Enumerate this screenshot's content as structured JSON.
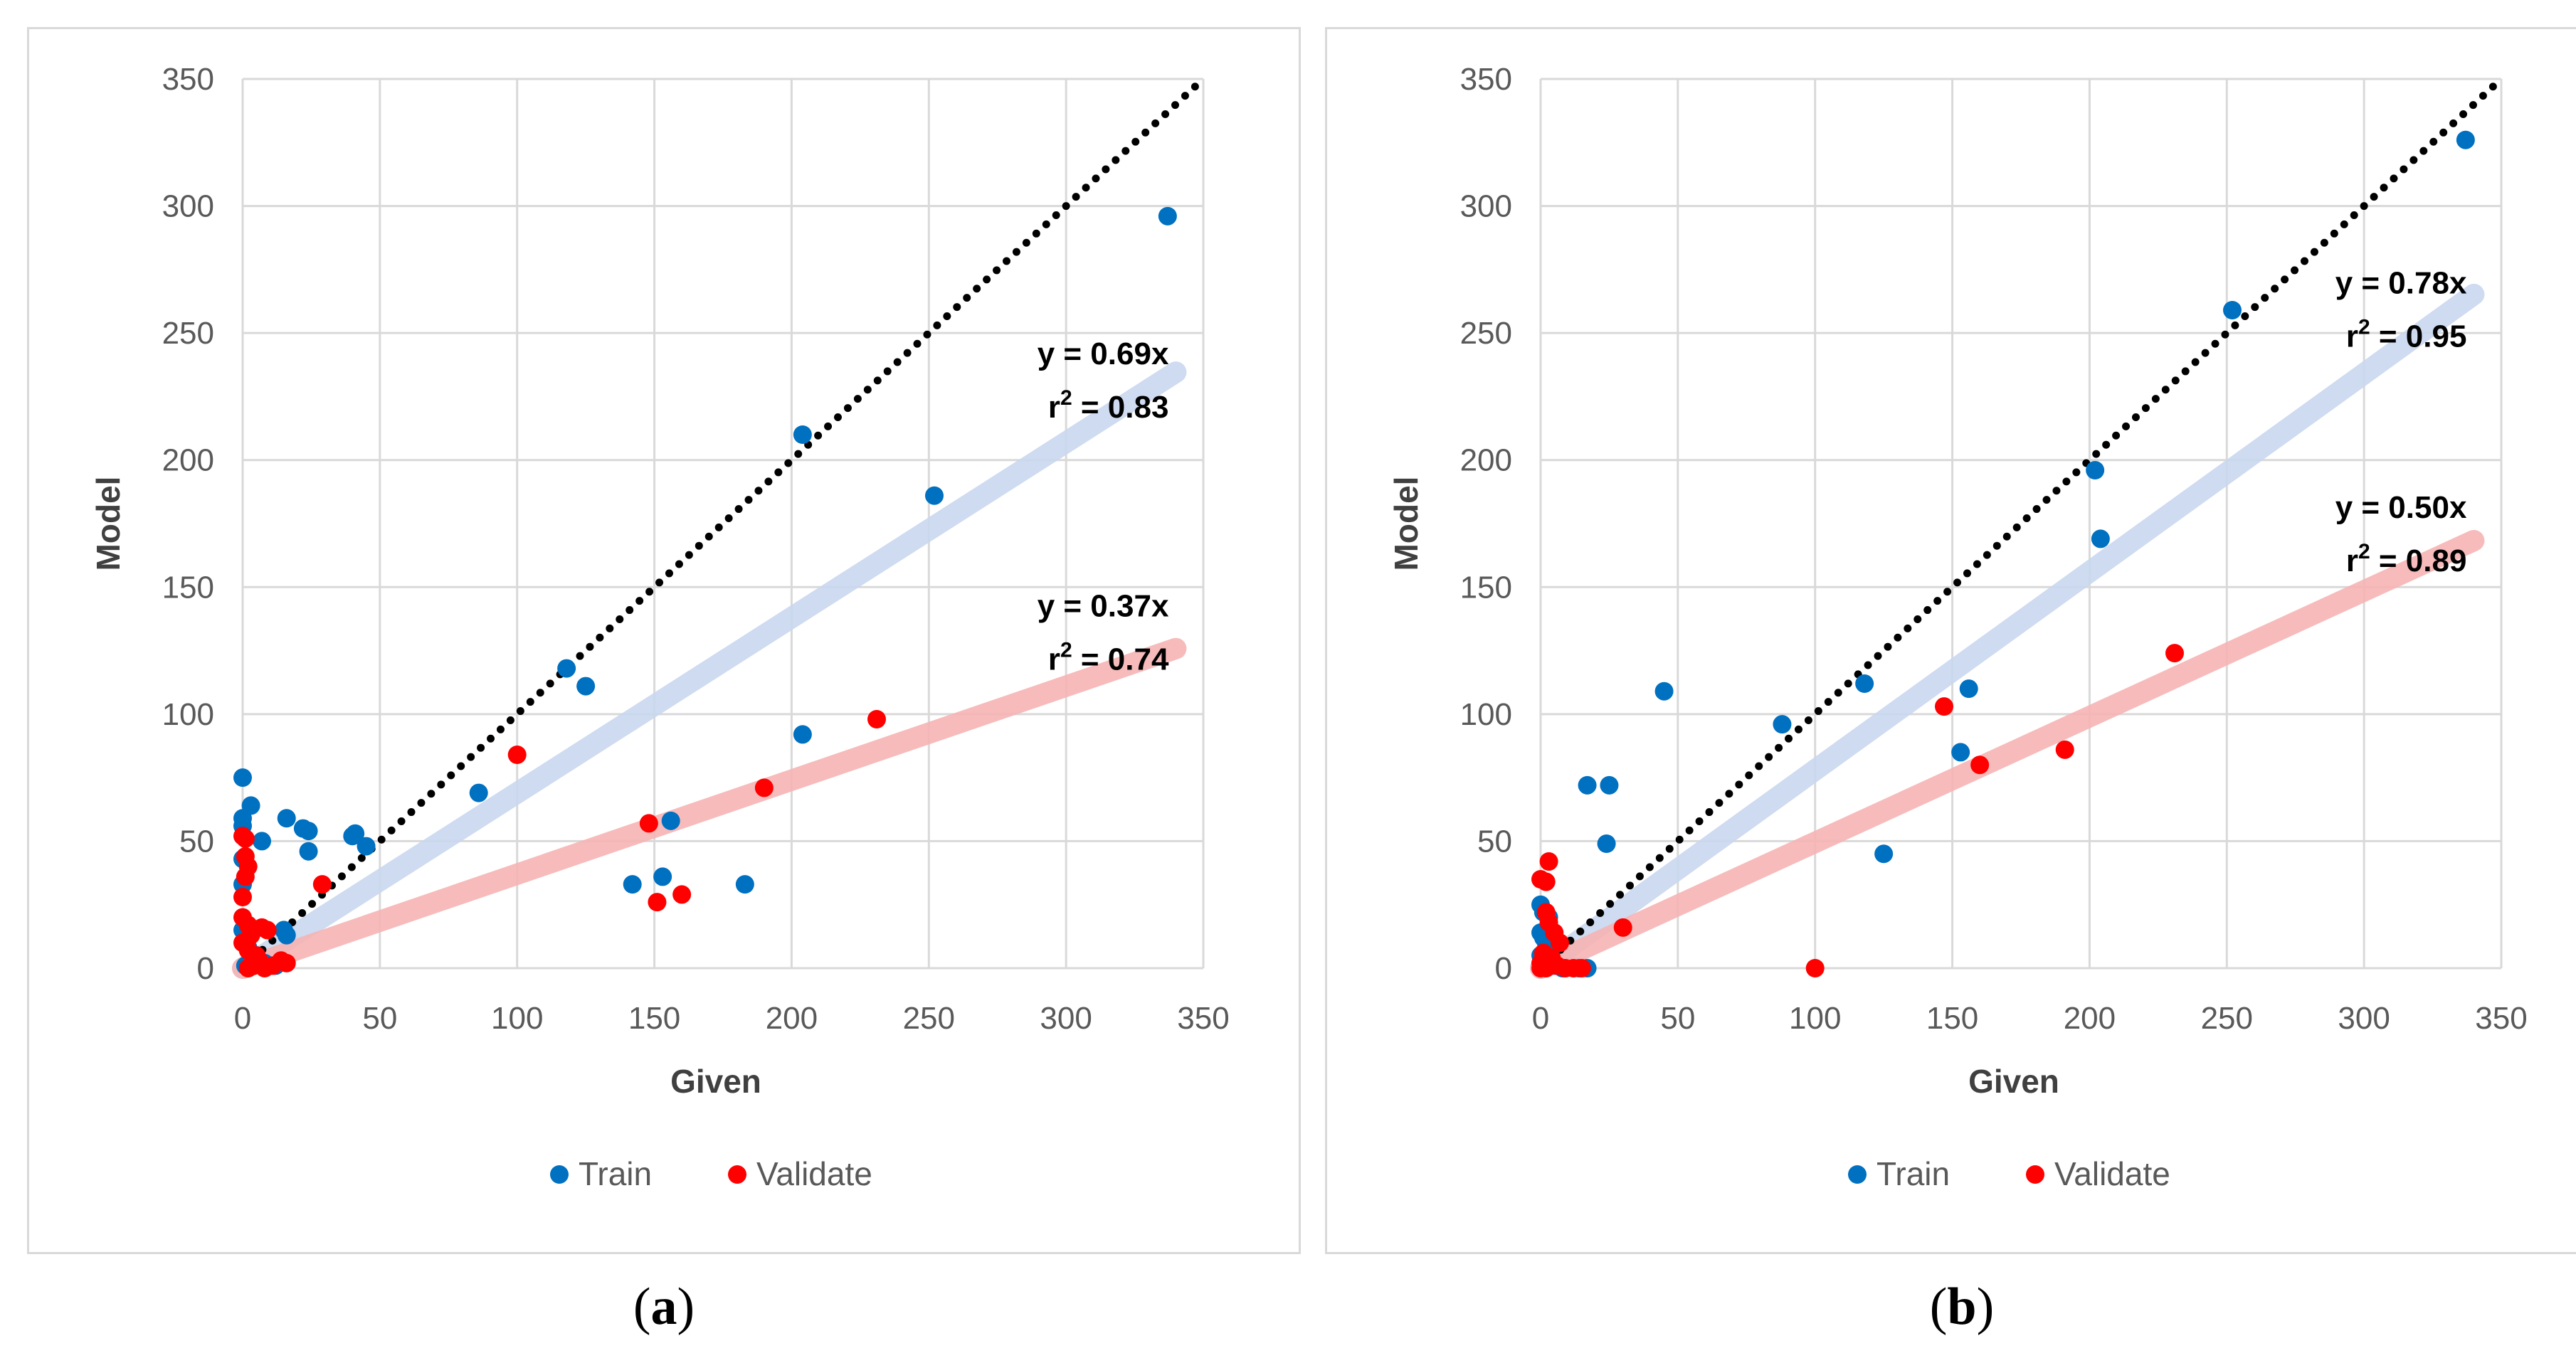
{
  "chart_data": [
    {
      "type": "scatter",
      "panel_label": "a",
      "xlabel": "Given",
      "ylabel": "Model",
      "xlim": [
        0,
        350
      ],
      "ylim": [
        0,
        350
      ],
      "x_ticks": [
        "0",
        "50",
        "100",
        "150",
        "200",
        "250",
        "300",
        "350"
      ],
      "y_ticks": [
        "0",
        "50",
        "100",
        "150",
        "200",
        "250",
        "300",
        "350"
      ],
      "grid": true,
      "legend": [
        "Train",
        "Validate"
      ],
      "legend_position": "bottom",
      "colors": {
        "train": "#0070c0",
        "validate": "#ff0000",
        "train_fit": "#c9d8ef",
        "validate_fit": "#f7b4b4",
        "identity": "#000000"
      },
      "series": [
        {
          "name": "Train",
          "points": [
            [
              337,
              296
            ],
            [
              204,
              210
            ],
            [
              252,
              186
            ],
            [
              118,
              118
            ],
            [
              125,
              111
            ],
            [
              86,
              69
            ],
            [
              204,
              92
            ],
            [
              156,
              58
            ],
            [
              142,
              33
            ],
            [
              153,
              36
            ],
            [
              183,
              33
            ],
            [
              0,
              75
            ],
            [
              3,
              64
            ],
            [
              0,
              59
            ],
            [
              0,
              56
            ],
            [
              16,
              59
            ],
            [
              22,
              55
            ],
            [
              24,
              54
            ],
            [
              40,
              52
            ],
            [
              41,
              53
            ],
            [
              7,
              50
            ],
            [
              24,
              46
            ],
            [
              45,
              48
            ],
            [
              0,
              43
            ],
            [
              0,
              33
            ],
            [
              15,
              15
            ],
            [
              16,
              13
            ],
            [
              0,
              15
            ],
            [
              2,
              8
            ],
            [
              5,
              5
            ],
            [
              3,
              3
            ],
            [
              1,
              1
            ],
            [
              8,
              2
            ],
            [
              12,
              1
            ]
          ]
        },
        {
          "name": "Validate",
          "points": [
            [
              100,
              84
            ],
            [
              231,
              98
            ],
            [
              190,
              71
            ],
            [
              148,
              57
            ],
            [
              151,
              26
            ],
            [
              160,
              29
            ],
            [
              29,
              33
            ],
            [
              0,
              52
            ],
            [
              1,
              51
            ],
            [
              1,
              44
            ],
            [
              2,
              40
            ],
            [
              1,
              36
            ],
            [
              0,
              28
            ],
            [
              0,
              20
            ],
            [
              2,
              17
            ],
            [
              7,
              16
            ],
            [
              9,
              15
            ],
            [
              3,
              13
            ],
            [
              0,
              10
            ],
            [
              2,
              7
            ],
            [
              5,
              5
            ],
            [
              14,
              3
            ],
            [
              16,
              2
            ],
            [
              4,
              1
            ],
            [
              8,
              0
            ],
            [
              11,
              1
            ],
            [
              2,
              0
            ],
            [
              6,
              3
            ]
          ]
        }
      ],
      "fits": [
        {
          "name": "Train",
          "equation": "y = 0.69x",
          "r2": "0.83",
          "slope": 0.69,
          "x_end": 340
        },
        {
          "name": "Validate",
          "equation": "y = 0.37x",
          "r2": "0.74",
          "slope": 0.37,
          "x_end": 340
        }
      ],
      "r2_label": "r",
      "r2_sup": "2",
      "identity_line": {
        "x_end": 350
      }
    },
    {
      "type": "scatter",
      "panel_label": "b",
      "xlabel": "Given",
      "ylabel": "Model",
      "xlim": [
        0,
        350
      ],
      "ylim": [
        0,
        350
      ],
      "x_ticks": [
        "0",
        "50",
        "100",
        "150",
        "200",
        "250",
        "300",
        "350"
      ],
      "y_ticks": [
        "0",
        "50",
        "100",
        "150",
        "200",
        "250",
        "300",
        "350"
      ],
      "grid": true,
      "legend": [
        "Train",
        "Validate"
      ],
      "legend_position": "bottom",
      "colors": {
        "train": "#0070c0",
        "validate": "#ff0000",
        "train_fit": "#c9d8ef",
        "validate_fit": "#f7b4b4",
        "identity": "#000000"
      },
      "series": [
        {
          "name": "Train",
          "points": [
            [
              337,
              326
            ],
            [
              252,
              259
            ],
            [
              202,
              196
            ],
            [
              204,
              169
            ],
            [
              118,
              112
            ],
            [
              156,
              110
            ],
            [
              45,
              109
            ],
            [
              88,
              96
            ],
            [
              153,
              85
            ],
            [
              125,
              45
            ],
            [
              17,
              72
            ],
            [
              25,
              72
            ],
            [
              24,
              49
            ],
            [
              0,
              25
            ],
            [
              1,
              22
            ],
            [
              3,
              20
            ],
            [
              0,
              14
            ],
            [
              1,
              12
            ],
            [
              2,
              10
            ],
            [
              4,
              8
            ],
            [
              0,
              5
            ],
            [
              3,
              3
            ],
            [
              5,
              1
            ],
            [
              8,
              0
            ],
            [
              14,
              0
            ],
            [
              17,
              0
            ]
          ]
        },
        {
          "name": "Validate",
          "points": [
            [
              231,
              124
            ],
            [
              147,
              103
            ],
            [
              160,
              80
            ],
            [
              191,
              86
            ],
            [
              30,
              16
            ],
            [
              100,
              0
            ],
            [
              3,
              42
            ],
            [
              0,
              35
            ],
            [
              2,
              34
            ],
            [
              2,
              22
            ],
            [
              3,
              18
            ],
            [
              5,
              14
            ],
            [
              7,
              10
            ],
            [
              1,
              6
            ],
            [
              4,
              4
            ],
            [
              0,
              2
            ],
            [
              6,
              1
            ],
            [
              9,
              0
            ],
            [
              12,
              0
            ],
            [
              15,
              0
            ],
            [
              2,
              0
            ],
            [
              0,
              0
            ]
          ]
        }
      ],
      "fits": [
        {
          "name": "Train",
          "equation": "y = 0.78x",
          "r2": "0.95",
          "slope": 0.78,
          "x_end": 340
        },
        {
          "name": "Validate",
          "equation": "y = 0.50x",
          "r2": "0.89",
          "slope": 0.495,
          "x_end": 340
        }
      ],
      "r2_label": "r",
      "r2_sup": "2",
      "identity_line": {
        "x_end": 350
      }
    }
  ]
}
